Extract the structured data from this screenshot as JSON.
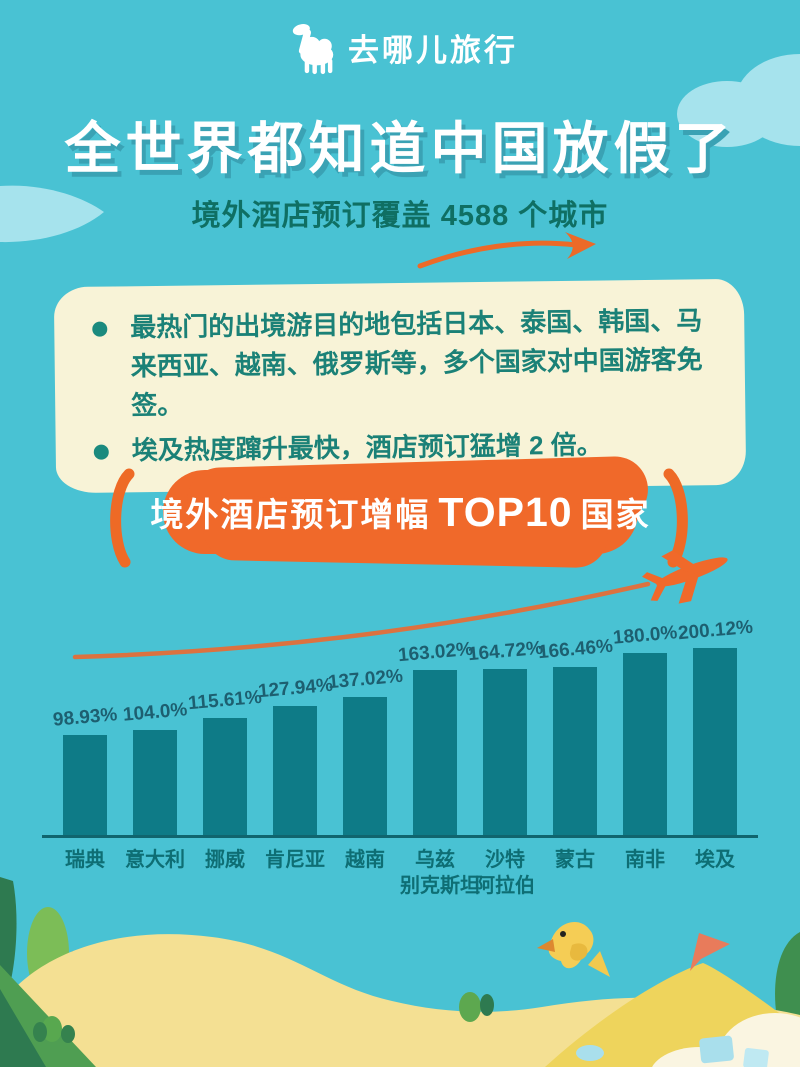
{
  "brand": {
    "name": "去哪儿旅行",
    "logo_icon": "camel-icon"
  },
  "header": {
    "title": "全世界都知道中国放假了",
    "subtitle": "境外酒店预订覆盖 4588 个城市"
  },
  "highlights": {
    "items": [
      "最热门的出境游目的地包括日本、泰国、韩国、马来西亚、越南、俄罗斯等，多个国家对中国游客免签。",
      "埃及热度蹿升最快，酒店预订猛增 2 倍。"
    ]
  },
  "chart_section": {
    "badge": {
      "prefix": "境外酒店预订增幅",
      "emph": "TOP10",
      "suffix": "国家"
    }
  },
  "chart_data": {
    "type": "bar",
    "title": "境外酒店预订增幅 TOP10 国家",
    "categories": [
      "瑞典",
      "意大利",
      "挪威",
      "肯尼亚",
      "越南",
      "乌兹别克斯坦",
      "沙特阿拉伯",
      "蒙古",
      "南非",
      "埃及"
    ],
    "category_display": [
      [
        "瑞典"
      ],
      [
        "意大利"
      ],
      [
        "挪威"
      ],
      [
        "肯尼亚"
      ],
      [
        "越南"
      ],
      [
        "乌兹",
        "别克斯坦"
      ],
      [
        "沙特",
        "阿拉伯"
      ],
      [
        "蒙古"
      ],
      [
        "南非"
      ],
      [
        "埃及"
      ]
    ],
    "values": [
      98.93,
      104.0,
      115.61,
      127.94,
      137.02,
      163.02,
      164.72,
      166.46,
      180.0,
      200.12
    ],
    "value_labels": [
      "98.93%",
      "104.0%",
      "115.61%",
      "127.94%",
      "137.02%",
      "163.02%",
      "164.72%",
      "166.46%",
      "180.0%",
      "200.12%"
    ],
    "unit": "%",
    "xlabel": "",
    "ylabel": "",
    "ylim": [
      0,
      210
    ],
    "grid": false,
    "legend": "none",
    "annotations": "orange upward trend curve ending in an airplane icon above the bars"
  },
  "decor": {
    "icons": [
      "camel-icon",
      "arrow-swoosh-icon",
      "bracket-left-icon",
      "bracket-right-icon",
      "airplane-icon",
      "cloud-shape",
      "sand-dune-shape",
      "bird-icon",
      "flag-icon",
      "tree-shape",
      "ice-cube-shape"
    ]
  },
  "colors": {
    "background": "#49c2d3",
    "cloud": "#a6e3ed",
    "title_text": "#ffffff",
    "title_shadow": "#3aa2b4",
    "subtitle_text": "#0f6f63",
    "box_background": "#f8f3d7",
    "box_text": "#1b8177",
    "accent_orange": "#f0692a",
    "trend_line": "#dc7240",
    "bar_fill": "#0e7b87",
    "value_label": "#1d5f70",
    "axis": "#10656e",
    "sand_light": "#f4e093",
    "sand_dark": "#eed45c",
    "green_dark": "#2e7a50",
    "green_light": "#7cbd57",
    "bird_yellow": "#f5cd55",
    "flag_salmon": "#e87b5b"
  }
}
